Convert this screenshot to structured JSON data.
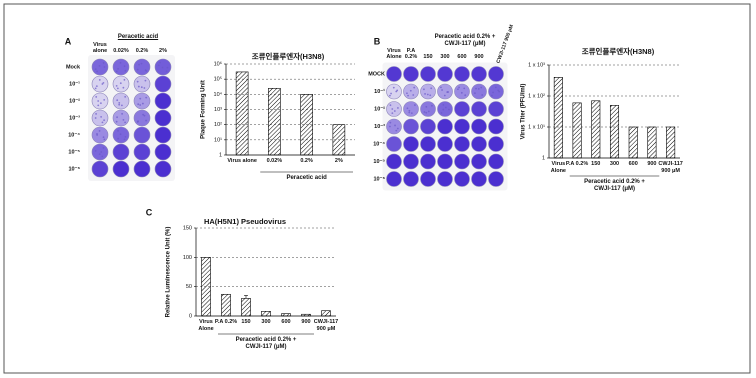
{
  "panel_labels": [
    "A",
    "B",
    "C"
  ],
  "plate_a": {
    "header": "Peracetic acid",
    "columns": [
      "Virus alone",
      "0.02%",
      "0.2%",
      "2%"
    ],
    "rows": [
      "Mock",
      "10⁻¹",
      "10⁻²",
      "10⁻³",
      "10⁻⁴",
      "10⁻⁵",
      "10⁻⁶"
    ]
  },
  "plate_b": {
    "header": "Peracetic acid 0.2% + CWJI-117 (μM)",
    "columns": [
      "Virus Alone",
      "P.A 0.2%",
      "150",
      "300",
      "600",
      "900",
      "CWJI-117 900 μM"
    ],
    "rows": [
      "MOCK",
      "10⁻¹",
      "10⁻²",
      "10⁻³",
      "10⁻⁴",
      "10⁻⁵",
      "10⁻⁶"
    ]
  },
  "chart_data": [
    {
      "type": "bar",
      "title": "조류인플루엔자(H3N8)",
      "y_label": "Plaque Forming Unit",
      "categories": [
        "Virus alone",
        "0.02%",
        "0.2%",
        "2%"
      ],
      "group_label": "Peracetic acid",
      "values": [
        300000,
        25000,
        10000,
        100
      ],
      "color": "#000000",
      "ylim": [
        1,
        1000000
      ],
      "log_scale": true,
      "grid": true,
      "yticks": [
        1,
        {
          "value": 10,
          "label": "10¹"
        },
        {
          "value": 100,
          "label": "10²"
        },
        {
          "value": 1000,
          "label": "10³"
        },
        {
          "value": 10000,
          "label": "10⁴"
        },
        {
          "value": 100000,
          "label": "10⁵"
        },
        {
          "value": 1000000,
          "label": "10⁶"
        }
      ]
    },
    {
      "type": "bar",
      "title": "조류인플루엔자(H3N8)",
      "y_label": "Virus Titer (PFU/ml)",
      "categories": [
        "Virus Alone",
        "P.A 0.2%",
        "150",
        "300",
        "600",
        "900",
        "CWJI-117 900 μM"
      ],
      "group_label": "Peracetic acid 0.2% + CWJI-117 (μM)",
      "values": [
        400,
        60,
        70,
        50,
        10,
        10,
        10
      ],
      "color": "#000000",
      "ylim": [
        1,
        1000
      ],
      "log_scale": true,
      "grid": true,
      "yticks": [
        1,
        {
          "value": 10,
          "label": "1 x 10¹"
        },
        {
          "value": 100,
          "label": "1 x 10²"
        },
        {
          "value": 1000,
          "label": "1 x 10³"
        }
      ]
    },
    {
      "type": "bar",
      "title": "HA(H5N1) Pseudovirus",
      "y_label": "Relative Luminescence Unit (%)",
      "categories": [
        "Virus Alone",
        "P.A 0.2%",
        "150",
        "300",
        "600",
        "900",
        "CWJI-117 900 μM"
      ],
      "group_label": "Peracetic acid 0.2% + CWJI-117 (μM)",
      "values": [
        100,
        37,
        30,
        8,
        4,
        3,
        9
      ],
      "errors": [
        null,
        null,
        5,
        null,
        null,
        null,
        null
      ],
      "color": "#000000",
      "ylim": [
        0,
        150
      ],
      "log_scale": false,
      "grid": true,
      "yticks": [
        0,
        50,
        100,
        150
      ]
    }
  ]
}
